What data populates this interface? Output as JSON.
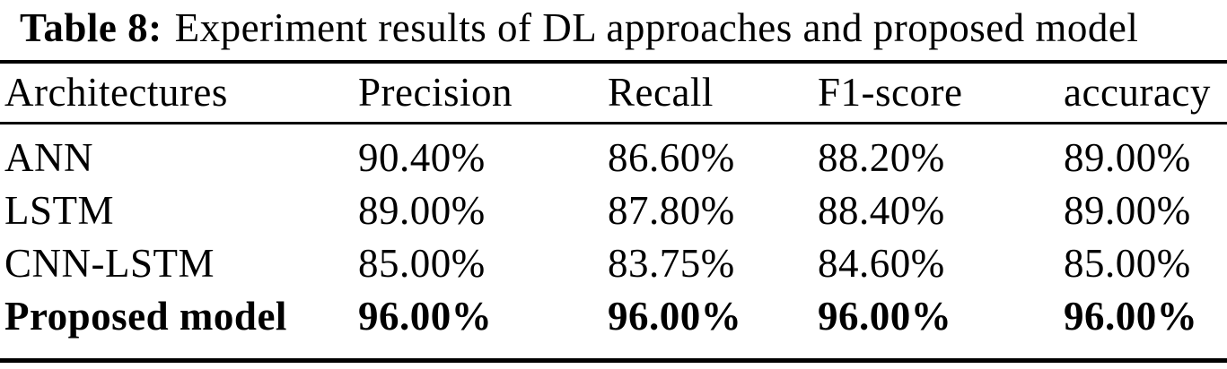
{
  "caption": {
    "label": "Table 8:",
    "text": "Experiment results of DL approaches and proposed model"
  },
  "table": {
    "headers": [
      "Architectures",
      "Precision",
      "Recall",
      "F1-score",
      "accuracy"
    ],
    "rows": [
      {
        "cells": [
          "ANN",
          "90.40%",
          "86.60%",
          "88.20%",
          "89.00%"
        ],
        "emphasis": false
      },
      {
        "cells": [
          "LSTM",
          "89.00%",
          "87.80%",
          "88.40%",
          "89.00%"
        ],
        "emphasis": false
      },
      {
        "cells": [
          "CNN-LSTM",
          "85.00%",
          "83.75%",
          "84.60%",
          "85.00%"
        ],
        "emphasis": false
      },
      {
        "cells": [
          "Proposed model",
          "96.00%",
          "96.00%",
          "96.00%",
          "96.00%"
        ],
        "emphasis": true
      }
    ]
  },
  "colors": {
    "text": "#000000",
    "background": "#ffffff",
    "rule": "#000000"
  }
}
